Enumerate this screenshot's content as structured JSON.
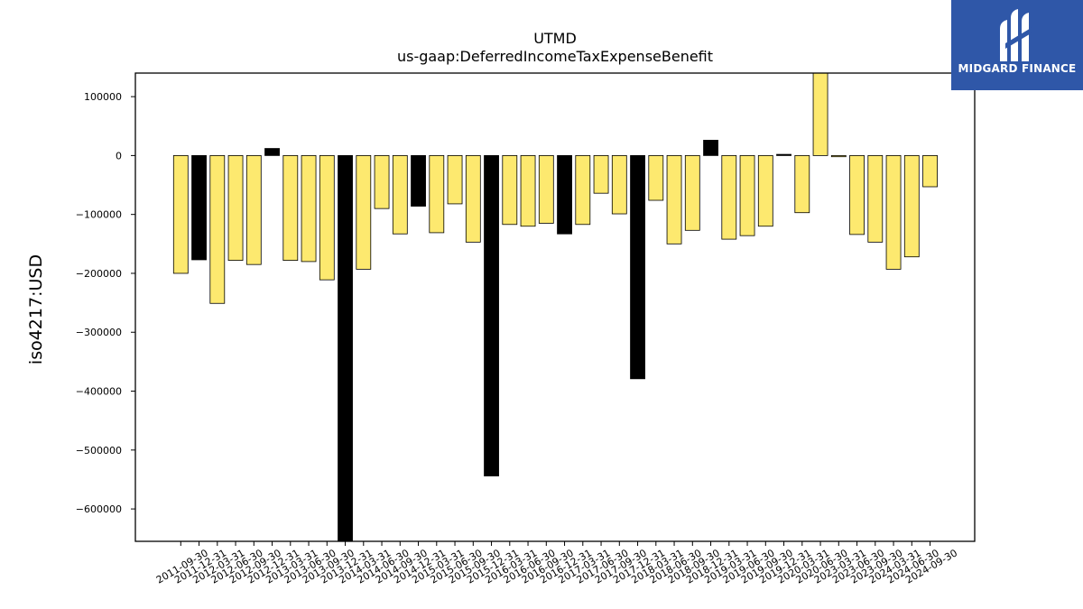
{
  "logo": {
    "text": "MIDGARD FINANCE",
    "icon": "midgard-logo-icon",
    "background": "#2f57a8"
  },
  "chart_data": {
    "type": "bar",
    "title": "UTMD",
    "subtitle": "us-gaap:DeferredIncomeTaxExpenseBenefit",
    "xlabel": "",
    "ylabel": "iso4217:USD",
    "ylim": [
      -655000,
      140000
    ],
    "yticks": [
      100000,
      0,
      -100000,
      -200000,
      -300000,
      -400000,
      -500000,
      -600000
    ],
    "ytick_labels": [
      "100000",
      "0",
      "−100000",
      "−200000",
      "−300000",
      "−400000",
      "−500000",
      "−600000"
    ],
    "grid": false,
    "legend": "none",
    "colors": {
      "default": "#fde96f",
      "highlight": "#000000",
      "edge": "#000000"
    },
    "categories": [
      "2011-09-30",
      "2011-12-31",
      "2012-03-31",
      "2012-06-30",
      "2012-09-30",
      "2012-12-31",
      "2013-03-31",
      "2013-06-30",
      "2013-09-30",
      "2013-12-31",
      "2014-03-31",
      "2014-06-30",
      "2014-09-30",
      "2014-12-31",
      "2015-03-31",
      "2015-06-30",
      "2015-09-30",
      "2015-12-31",
      "2016-03-31",
      "2016-06-30",
      "2016-09-30",
      "2016-12-31",
      "2017-03-31",
      "2017-06-30",
      "2017-09-30",
      "2017-12-31",
      "2018-03-31",
      "2018-06-30",
      "2018-09-30",
      "2018-12-31",
      "2019-03-31",
      "2019-06-30",
      "2019-09-30",
      "2019-12-31",
      "2020-03-31",
      "2020-06-30",
      "2023-03-31",
      "2023-06-30",
      "2023-09-30",
      "2024-03-31",
      "2024-06-30",
      "2024-09-30"
    ],
    "values": [
      -200000,
      -177000,
      -251000,
      -178000,
      -185000,
      12000,
      -178000,
      -180000,
      -211000,
      -655000,
      -193000,
      -90000,
      -133000,
      -86000,
      -131000,
      -82000,
      -147000,
      -544000,
      -117000,
      -120000,
      -115000,
      -133000,
      -117000,
      -64000,
      -99000,
      -379000,
      -76000,
      -150000,
      -127000,
      26000,
      -142000,
      -136000,
      -120000,
      2000,
      -97000,
      140000,
      -2000,
      -134000,
      -147000,
      -193000,
      -172000,
      -53000
    ],
    "highlight": [
      false,
      true,
      false,
      false,
      false,
      true,
      false,
      false,
      false,
      true,
      false,
      false,
      false,
      true,
      false,
      false,
      false,
      true,
      false,
      false,
      false,
      true,
      false,
      false,
      false,
      true,
      false,
      false,
      false,
      true,
      false,
      false,
      false,
      true,
      false,
      false,
      false,
      false,
      false,
      false,
      false,
      false
    ]
  }
}
